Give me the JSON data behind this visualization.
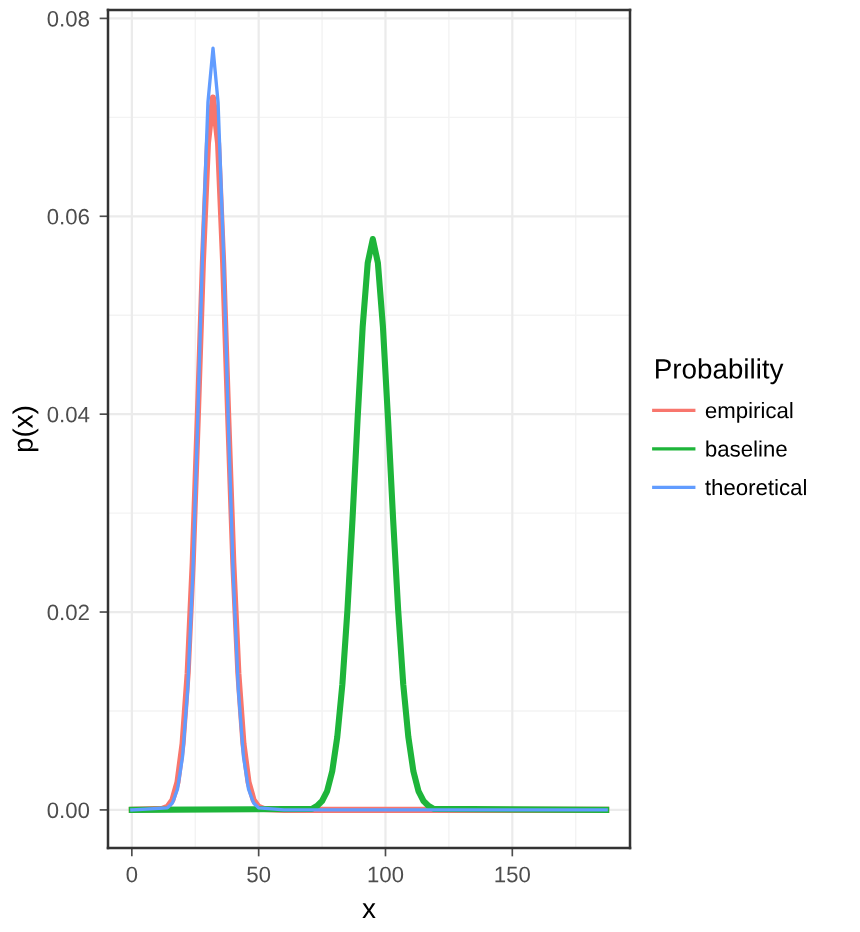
{
  "chart_data": {
    "type": "line",
    "xlabel": "x",
    "ylabel": "p(x)",
    "legend_title": "Probability",
    "legend": "right",
    "grid": true,
    "marker": "none",
    "line_style": "solid",
    "xlim": [
      -9.4,
      196.4
    ],
    "xticks": [
      0,
      50,
      100,
      150
    ],
    "ylim": [
      -0.00385,
      0.08085
    ],
    "yticks": [
      {
        "value": 0,
        "label": "0.00"
      },
      {
        "value": 0.02,
        "label": "0.02"
      },
      {
        "value": 0.04,
        "label": "0.04"
      },
      {
        "value": 0.06,
        "label": "0.06"
      },
      {
        "value": 0.08,
        "label": "0.08"
      }
    ],
    "series": [
      {
        "name": "empirical",
        "color": "#f8766d",
        "x": [
          0,
          12,
          14,
          16,
          18,
          20,
          22,
          24,
          26,
          28,
          30,
          32,
          34,
          36,
          38,
          40,
          42,
          44,
          46,
          48,
          50,
          52,
          60,
          187
        ],
        "values": [
          0,
          0.0001,
          0.0003,
          0.001,
          0.0028,
          0.0067,
          0.0138,
          0.025,
          0.0397,
          0.0553,
          0.0674,
          0.072,
          0.0674,
          0.0553,
          0.0397,
          0.025,
          0.0138,
          0.0067,
          0.0028,
          0.001,
          0.0003,
          0.0001,
          0,
          0
        ]
      },
      {
        "name": "baseline",
        "color": "#1eb53a",
        "x": [
          0,
          71,
          73,
          75,
          77,
          79,
          81,
          83,
          85,
          87,
          89,
          91,
          93,
          95,
          97,
          99,
          101,
          103,
          105,
          107,
          109,
          111,
          113,
          115,
          117,
          119,
          187
        ],
        "values": [
          0,
          0.0001,
          0.0004,
          0.0009,
          0.0019,
          0.0039,
          0.0074,
          0.0127,
          0.0202,
          0.0294,
          0.0395,
          0.0488,
          0.0553,
          0.0577,
          0.0553,
          0.0488,
          0.0395,
          0.0294,
          0.0202,
          0.0127,
          0.0074,
          0.0039,
          0.0019,
          0.0009,
          0.0004,
          0.0001,
          0
        ]
      },
      {
        "name": "theoretical",
        "color": "#619cff",
        "x": [
          0,
          14,
          16,
          18,
          20,
          22,
          24,
          26,
          28,
          30,
          32,
          34,
          36,
          38,
          40,
          42,
          44,
          46,
          48,
          50,
          60,
          187
        ],
        "values": [
          0,
          0.0002,
          0.0007,
          0.0021,
          0.0054,
          0.0121,
          0.0236,
          0.0396,
          0.0573,
          0.0715,
          0.077,
          0.0715,
          0.0573,
          0.0396,
          0.0236,
          0.0121,
          0.0054,
          0.0021,
          0.0007,
          0.0002,
          0,
          0
        ]
      }
    ]
  }
}
